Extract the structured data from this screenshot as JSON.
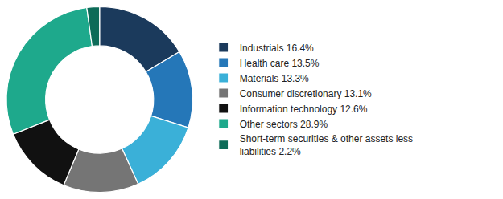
{
  "chart_data": {
    "type": "pie",
    "categories": [
      "Industrials 16.4%",
      "Health care 13.5%",
      "Materials 13.3%",
      "Consumer discretionary 13.1%",
      "Information technology 12.6%",
      "Other sectors 28.9%",
      "Short-term securities & other assets less\nliabilities 2.2%"
    ],
    "values": [
      16.4,
      13.5,
      13.3,
      13.1,
      12.6,
      28.9,
      2.2
    ],
    "colors": [
      "#1b3a5c",
      "#2577b8",
      "#3ab0d8",
      "#757575",
      "#111111",
      "#1ea98c",
      "#0d6b58"
    ],
    "legend": "right",
    "data_labels": false
  }
}
